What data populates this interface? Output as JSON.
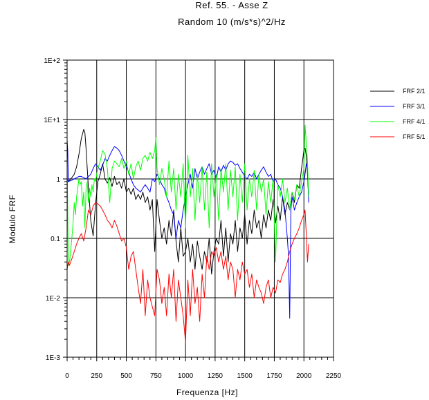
{
  "chart_data": {
    "type": "line",
    "title": "Ref. 55. - Asse Z",
    "subtitle": "Random  10  (m/s*s)^2/Hz",
    "xlabel": "Frequenza  [Hz]",
    "ylabel": "Modulo  FRF",
    "xlim": [
      0,
      2250
    ],
    "ylim": [
      0.001,
      100
    ],
    "yscale": "log",
    "grid": true,
    "legend_position": "top-right",
    "x_ticks": [
      "0",
      "250",
      "500",
      "750",
      "1000",
      "1250",
      "1500",
      "1750",
      "2000",
      "2250"
    ],
    "y_ticks": [
      "1E-3",
      "1E-2",
      "0.1",
      "1",
      "1E+1",
      "1E+2"
    ],
    "series": [
      {
        "name": "FRF 2/1",
        "color": "#000000",
        "x": [
          0,
          10,
          20,
          40,
          60,
          80,
          100,
          120,
          140,
          150,
          160,
          180,
          200,
          220,
          240,
          260,
          280,
          300,
          320,
          340,
          360,
          380,
          400,
          420,
          440,
          460,
          480,
          500,
          520,
          540,
          560,
          580,
          600,
          620,
          640,
          660,
          680,
          700,
          720,
          740,
          760,
          780,
          800,
          820,
          840,
          860,
          880,
          900,
          920,
          940,
          960,
          980,
          1000,
          1020,
          1040,
          1060,
          1080,
          1100,
          1120,
          1140,
          1160,
          1180,
          1200,
          1220,
          1240,
          1260,
          1280,
          1300,
          1320,
          1340,
          1360,
          1380,
          1400,
          1420,
          1440,
          1460,
          1480,
          1500,
          1520,
          1540,
          1560,
          1580,
          1600,
          1620,
          1640,
          1660,
          1680,
          1700,
          1720,
          1740,
          1760,
          1780,
          1800,
          1820,
          1840,
          1860,
          1880,
          1900,
          1920,
          1940,
          1960,
          1980,
          2000,
          2010,
          2020,
          2030,
          2040
        ],
        "y": [
          1.0,
          0.9,
          0.95,
          1.05,
          1.2,
          1.6,
          2.6,
          4.8,
          6.8,
          6.0,
          3.2,
          0.7,
          0.2,
          0.11,
          0.38,
          0.9,
          1.2,
          1.8,
          1.0,
          0.85,
          1.05,
          0.75,
          1.1,
          0.8,
          0.9,
          0.7,
          1.0,
          0.6,
          0.7,
          0.55,
          0.7,
          0.45,
          0.55,
          0.45,
          0.6,
          0.4,
          0.5,
          0.3,
          0.45,
          0.06,
          0.45,
          0.2,
          0.1,
          0.15,
          0.08,
          0.2,
          0.11,
          0.3,
          0.09,
          0.04,
          0.15,
          0.05,
          0.06,
          0.1,
          0.04,
          0.08,
          0.03,
          0.09,
          0.05,
          0.03,
          0.06,
          0.04,
          0.1,
          0.025,
          0.06,
          0.1,
          0.08,
          0.2,
          0.05,
          0.15,
          0.04,
          0.12,
          0.08,
          0.2,
          0.06,
          0.15,
          0.1,
          0.25,
          0.08,
          0.2,
          0.12,
          0.3,
          0.15,
          0.2,
          0.1,
          0.25,
          0.15,
          0.3,
          0.2,
          0.45,
          0.18,
          0.35,
          0.2,
          0.5,
          0.25,
          0.4,
          0.3,
          0.6,
          0.4,
          0.8,
          0.7,
          1.5,
          3.0,
          3.3,
          2.5,
          1.2,
          0.5
        ]
      },
      {
        "name": "FRF 3/1",
        "color": "#0000ff",
        "x": [
          0,
          5,
          10,
          20,
          40,
          60,
          80,
          100,
          120,
          140,
          160,
          180,
          200,
          220,
          240,
          260,
          280,
          300,
          320,
          340,
          360,
          380,
          400,
          420,
          440,
          460,
          480,
          500,
          520,
          540,
          560,
          580,
          600,
          620,
          640,
          660,
          680,
          700,
          720,
          740,
          760,
          780,
          800,
          820,
          840,
          860,
          880,
          900,
          920,
          940,
          960,
          980,
          1000,
          1020,
          1040,
          1060,
          1080,
          1100,
          1120,
          1140,
          1160,
          1180,
          1200,
          1220,
          1240,
          1260,
          1280,
          1300,
          1320,
          1340,
          1360,
          1380,
          1400,
          1420,
          1440,
          1460,
          1480,
          1500,
          1520,
          1540,
          1560,
          1580,
          1600,
          1620,
          1640,
          1660,
          1680,
          1700,
          1720,
          1740,
          1760,
          1780,
          1800,
          1820,
          1840,
          1860,
          1870,
          1880,
          1890,
          1900,
          1920,
          1940,
          1960,
          1980,
          2000,
          2010,
          2020,
          2030,
          2040
        ],
        "y": [
          4.5,
          3.0,
          0.9,
          0.92,
          0.95,
          1.0,
          1.05,
          1.1,
          1.1,
          1.05,
          1.0,
          1.1,
          1.2,
          1.5,
          1.8,
          1.6,
          1.4,
          1.7,
          2.2,
          2.0,
          2.5,
          3.0,
          3.5,
          3.3,
          3.0,
          2.5,
          2.0,
          1.6,
          1.3,
          1.0,
          0.8,
          0.7,
          0.65,
          0.6,
          0.7,
          0.8,
          0.7,
          0.6,
          1.0,
          0.9,
          1.2,
          1.0,
          0.8,
          0.7,
          0.5,
          0.4,
          0.3,
          0.25,
          0.1,
          0.2,
          0.15,
          0.3,
          0.5,
          0.8,
          1.2,
          0.7,
          1.5,
          1.0,
          1.3,
          1.6,
          1.2,
          1.5,
          1.8,
          1.2,
          1.4,
          1.0,
          1.6,
          1.3,
          1.7,
          1.4,
          1.8,
          2.0,
          1.9,
          1.7,
          1.8,
          1.5,
          1.3,
          1.1,
          1.0,
          1.2,
          1.1,
          1.3,
          1.0,
          1.2,
          1.4,
          1.6,
          1.3,
          1.1,
          1.2,
          0.9,
          1.0,
          0.8,
          0.7,
          0.5,
          0.3,
          0.1,
          0.05,
          0.0045,
          0.3,
          0.5,
          0.3,
          0.4,
          0.5,
          0.6,
          0.9,
          1.2,
          1.8,
          1.5,
          0.4
        ]
      },
      {
        "name": "FRF 4/1",
        "color": "#00ff00",
        "x": [
          0,
          10,
          20,
          30,
          40,
          50,
          60,
          70,
          80,
          90,
          100,
          110,
          120,
          130,
          140,
          150,
          160,
          170,
          180,
          190,
          200,
          210,
          220,
          230,
          240,
          250,
          260,
          280,
          300,
          320,
          340,
          360,
          380,
          400,
          420,
          440,
          460,
          480,
          500,
          520,
          540,
          560,
          580,
          600,
          620,
          640,
          660,
          680,
          700,
          720,
          740,
          750,
          760,
          780,
          800,
          820,
          840,
          860,
          880,
          900,
          920,
          940,
          960,
          980,
          1000,
          1020,
          1040,
          1060,
          1080,
          1100,
          1120,
          1140,
          1160,
          1180,
          1200,
          1220,
          1240,
          1260,
          1280,
          1300,
          1320,
          1340,
          1360,
          1380,
          1400,
          1420,
          1440,
          1460,
          1480,
          1500,
          1520,
          1540,
          1560,
          1580,
          1600,
          1620,
          1640,
          1660,
          1680,
          1700,
          1720,
          1740,
          1760,
          1780,
          1800,
          1820,
          1840,
          1860,
          1880,
          1900,
          1920,
          1940,
          1960,
          1980,
          2000,
          2010,
          2020,
          2030,
          2040
        ],
        "y": [
          2.5,
          0.035,
          0.04,
          0.06,
          0.1,
          0.18,
          0.4,
          0.25,
          0.5,
          0.7,
          1.0,
          0.8,
          0.9,
          0.35,
          0.6,
          0.15,
          0.7,
          0.9,
          0.4,
          0.7,
          0.5,
          0.8,
          0.6,
          1.0,
          0.9,
          1.2,
          1.5,
          2.0,
          3.0,
          2.6,
          1.5,
          0.4,
          1.5,
          2.0,
          1.8,
          1.6,
          2.2,
          1.5,
          2.0,
          1.2,
          1.8,
          1.0,
          1.6,
          2.0,
          1.4,
          2.2,
          2.5,
          2.0,
          2.8,
          2.2,
          3.0,
          5.0,
          1.5,
          0.8,
          1.5,
          1.0,
          0.5,
          2.0,
          0.6,
          1.5,
          0.3,
          1.2,
          0.5,
          1.8,
          0.15,
          2.5,
          0.5,
          1.5,
          0.2,
          1.2,
          0.4,
          1.6,
          0.3,
          1.3,
          0.15,
          1.8,
          0.5,
          1.2,
          0.2,
          1.5,
          0.6,
          1.8,
          0.3,
          1.4,
          0.5,
          1.6,
          0.2,
          1.2,
          0.4,
          1.8,
          0.3,
          1.0,
          0.5,
          1.4,
          0.3,
          1.2,
          0.6,
          1.0,
          0.25,
          0.9,
          0.4,
          1.0,
          0.04,
          0.8,
          0.5,
          1.0,
          0.4,
          0.7,
          0.3,
          0.6,
          0.45,
          0.8,
          0.5,
          0.9,
          1.5,
          8.0,
          4.0,
          2.0,
          0.5
        ]
      },
      {
        "name": "FRF 5/1",
        "color": "#ff0000",
        "x": [
          0,
          10,
          20,
          30,
          40,
          60,
          80,
          100,
          120,
          140,
          160,
          180,
          200,
          220,
          240,
          260,
          280,
          300,
          320,
          340,
          360,
          380,
          400,
          420,
          440,
          460,
          480,
          500,
          520,
          540,
          560,
          580,
          600,
          620,
          640,
          660,
          680,
          700,
          720,
          740,
          760,
          780,
          800,
          820,
          840,
          860,
          880,
          900,
          920,
          940,
          960,
          980,
          1000,
          1020,
          1040,
          1060,
          1080,
          1100,
          1120,
          1140,
          1160,
          1180,
          1200,
          1220,
          1240,
          1260,
          1280,
          1300,
          1320,
          1340,
          1360,
          1380,
          1400,
          1420,
          1440,
          1460,
          1480,
          1500,
          1520,
          1540,
          1560,
          1580,
          1600,
          1620,
          1640,
          1660,
          1680,
          1700,
          1720,
          1740,
          1760,
          1780,
          1800,
          1820,
          1840,
          1860,
          1880,
          1900,
          1920,
          1940,
          1960,
          1980,
          2000,
          2010,
          2020,
          2030,
          2040
        ],
        "y": [
          0.03,
          0.04,
          0.035,
          0.04,
          0.045,
          0.06,
          0.08,
          0.1,
          0.12,
          0.09,
          0.15,
          0.3,
          0.25,
          0.35,
          0.4,
          0.38,
          0.35,
          0.3,
          0.25,
          0.2,
          0.18,
          0.15,
          0.2,
          0.16,
          0.12,
          0.09,
          0.1,
          0.07,
          0.03,
          0.05,
          0.06,
          0.03,
          0.015,
          0.008,
          0.03,
          0.005,
          0.02,
          0.01,
          0.007,
          0.005,
          0.03,
          0.02,
          0.008,
          0.015,
          0.005,
          0.025,
          0.01,
          0.03,
          0.004,
          0.02,
          0.01,
          0.005,
          0.0018,
          0.02,
          0.005,
          0.03,
          0.008,
          0.015,
          0.004,
          0.025,
          0.01,
          0.05,
          0.03,
          0.06,
          0.05,
          0.07,
          0.04,
          0.06,
          0.03,
          0.05,
          0.02,
          0.04,
          0.03,
          0.01,
          0.03,
          0.02,
          0.04,
          0.025,
          0.03,
          0.015,
          0.025,
          0.01,
          0.02,
          0.015,
          0.012,
          0.008,
          0.015,
          0.02,
          0.01,
          0.015,
          0.012,
          0.02,
          0.018,
          0.025,
          0.03,
          0.04,
          0.06,
          0.08,
          0.1,
          0.12,
          0.15,
          0.2,
          0.25,
          0.3,
          0.12,
          0.04,
          0.08
        ]
      }
    ]
  }
}
